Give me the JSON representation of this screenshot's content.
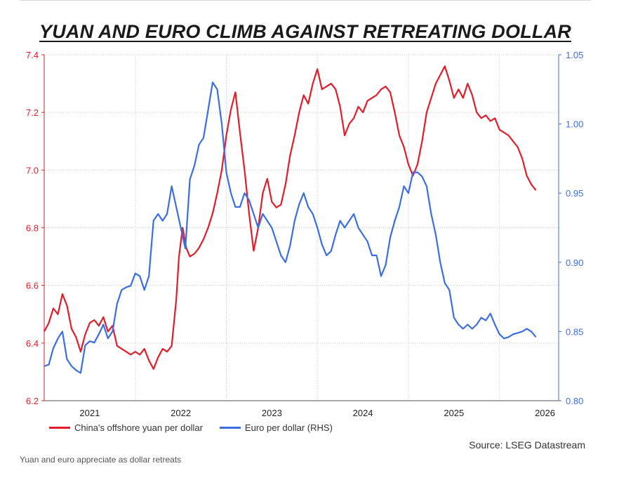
{
  "title": "YUAN AND EURO CLIMB AGAINST RETREATING DOLLAR",
  "source": "Source: LSEG Datastream",
  "caption": "Yuan and euro appreciate as dollar retreats",
  "colors": {
    "yuan": "#e11d2a",
    "euro": "#3b6ee0",
    "grid": "#c8c8c8"
  },
  "chart_data": {
    "type": "line",
    "title": "YUAN AND EURO CLIMB AGAINST RETREATING DOLLAR",
    "x_ticks": [
      "2021",
      "2022",
      "2023",
      "2024",
      "2025",
      "2026"
    ],
    "x_range": [
      2020.5,
      2026.15
    ],
    "y_left": {
      "range": [
        6.2,
        7.4
      ],
      "ticks": [
        "6.2",
        "6.4",
        "6.6",
        "6.8",
        "7.0",
        "7.2",
        "7.4"
      ],
      "color": "#e11d2a"
    },
    "y_right": {
      "range": [
        0.8,
        1.05
      ],
      "ticks": [
        "0.80",
        "0.85",
        "0.90",
        "0.95",
        "1.00",
        "1.05"
      ],
      "color": "#3b6ee0"
    },
    "grid": true,
    "legend_position": "bottom-left",
    "series": [
      {
        "name": "China's offshore yuan per dollar",
        "axis": "left",
        "x": [
          2020.5,
          2020.55,
          2020.6,
          2020.65,
          2020.7,
          2020.75,
          2020.8,
          2020.85,
          2020.9,
          2020.95,
          2021.0,
          2021.05,
          2021.1,
          2021.15,
          2021.2,
          2021.25,
          2021.3,
          2021.35,
          2021.4,
          2021.45,
          2021.5,
          2021.55,
          2021.6,
          2021.65,
          2021.7,
          2021.75,
          2021.8,
          2021.85,
          2021.9,
          2021.95,
          2021.98,
          2022.02,
          2022.06,
          2022.1,
          2022.15,
          2022.2,
          2022.25,
          2022.3,
          2022.35,
          2022.4,
          2022.45,
          2022.5,
          2022.55,
          2022.6,
          2022.65,
          2022.7,
          2022.75,
          2022.8,
          2022.85,
          2022.9,
          2022.95,
          2023.0,
          2023.05,
          2023.1,
          2023.15,
          2023.2,
          2023.25,
          2023.3,
          2023.35,
          2023.4,
          2023.45,
          2023.5,
          2023.55,
          2023.6,
          2023.65,
          2023.7,
          2023.75,
          2023.8,
          2023.85,
          2023.9,
          2023.95,
          2024.0,
          2024.05,
          2024.1,
          2024.15,
          2024.2,
          2024.25,
          2024.3,
          2024.35,
          2024.4,
          2024.45,
          2024.5,
          2024.55,
          2024.6,
          2024.65,
          2024.7,
          2024.75,
          2024.8,
          2024.85,
          2024.9,
          2024.95,
          2025.0,
          2025.05,
          2025.1,
          2025.15,
          2025.2,
          2025.25,
          2025.3,
          2025.35,
          2025.4,
          2025.45,
          2025.5,
          2025.55,
          2025.6,
          2025.65,
          2025.7,
          2025.75,
          2025.8,
          2025.85,
          2025.9
        ],
        "values": [
          6.44,
          6.47,
          6.52,
          6.5,
          6.57,
          6.53,
          6.45,
          6.42,
          6.37,
          6.43,
          6.47,
          6.48,
          6.46,
          6.49,
          6.44,
          6.46,
          6.39,
          6.38,
          6.37,
          6.36,
          6.37,
          6.36,
          6.38,
          6.34,
          6.31,
          6.35,
          6.38,
          6.37,
          6.39,
          6.55,
          6.7,
          6.8,
          6.73,
          6.7,
          6.71,
          6.73,
          6.76,
          6.8,
          6.85,
          6.92,
          7.0,
          7.12,
          7.21,
          7.27,
          7.13,
          7.0,
          6.85,
          6.72,
          6.8,
          6.92,
          6.97,
          6.89,
          6.87,
          6.88,
          6.95,
          7.05,
          7.12,
          7.2,
          7.26,
          7.23,
          7.3,
          7.35,
          7.28,
          7.29,
          7.3,
          7.28,
          7.22,
          7.12,
          7.16,
          7.18,
          7.22,
          7.2,
          7.24,
          7.25,
          7.26,
          7.28,
          7.29,
          7.27,
          7.2,
          7.12,
          7.08,
          7.02,
          6.98,
          7.02,
          7.1,
          7.2,
          7.25,
          7.3,
          7.33,
          7.36,
          7.31,
          7.25,
          7.28,
          7.25,
          7.3,
          7.26,
          7.2,
          7.18,
          7.19,
          7.17,
          7.18,
          7.14,
          7.13,
          7.12,
          7.1,
          7.08,
          7.04,
          6.98,
          6.95,
          6.93
        ],
        "color": "#e11d2a"
      },
      {
        "name": "Euro per dollar (RHS)",
        "axis": "right",
        "x": [
          2020.5,
          2020.55,
          2020.6,
          2020.65,
          2020.7,
          2020.75,
          2020.8,
          2020.85,
          2020.9,
          2020.95,
          2021.0,
          2021.05,
          2021.1,
          2021.15,
          2021.2,
          2021.25,
          2021.3,
          2021.35,
          2021.4,
          2021.45,
          2021.5,
          2021.55,
          2021.6,
          2021.65,
          2021.7,
          2021.75,
          2021.8,
          2021.85,
          2021.9,
          2021.95,
          2022.0,
          2022.05,
          2022.1,
          2022.15,
          2022.2,
          2022.25,
          2022.3,
          2022.35,
          2022.4,
          2022.45,
          2022.5,
          2022.55,
          2022.6,
          2022.65,
          2022.7,
          2022.75,
          2022.8,
          2022.85,
          2022.9,
          2022.95,
          2023.0,
          2023.05,
          2023.1,
          2023.15,
          2023.2,
          2023.25,
          2023.3,
          2023.35,
          2023.4,
          2023.45,
          2023.5,
          2023.55,
          2023.6,
          2023.65,
          2023.7,
          2023.75,
          2023.8,
          2023.85,
          2023.9,
          2023.95,
          2024.0,
          2024.05,
          2024.1,
          2024.15,
          2024.2,
          2024.25,
          2024.3,
          2024.35,
          2024.4,
          2024.45,
          2024.5,
          2024.55,
          2024.6,
          2024.65,
          2024.7,
          2024.75,
          2024.8,
          2024.85,
          2024.9,
          2024.95,
          2025.0,
          2025.05,
          2025.1,
          2025.15,
          2025.2,
          2025.25,
          2025.3,
          2025.35,
          2025.4,
          2025.45,
          2025.5,
          2025.55,
          2025.6,
          2025.65,
          2025.7,
          2025.75,
          2025.8,
          2025.85,
          2025.9
        ],
        "values": [
          0.825,
          0.826,
          0.838,
          0.845,
          0.85,
          0.83,
          0.825,
          0.822,
          0.82,
          0.84,
          0.843,
          0.842,
          0.848,
          0.855,
          0.845,
          0.85,
          0.87,
          0.88,
          0.882,
          0.883,
          0.892,
          0.89,
          0.88,
          0.89,
          0.93,
          0.935,
          0.93,
          0.935,
          0.955,
          0.94,
          0.925,
          0.91,
          0.96,
          0.97,
          0.985,
          0.99,
          1.01,
          1.03,
          1.025,
          1.0,
          0.965,
          0.95,
          0.94,
          0.94,
          0.95,
          0.945,
          0.935,
          0.925,
          0.935,
          0.93,
          0.925,
          0.915,
          0.905,
          0.9,
          0.912,
          0.93,
          0.942,
          0.95,
          0.94,
          0.935,
          0.925,
          0.913,
          0.905,
          0.908,
          0.92,
          0.93,
          0.925,
          0.93,
          0.935,
          0.925,
          0.92,
          0.915,
          0.905,
          0.905,
          0.89,
          0.898,
          0.918,
          0.93,
          0.94,
          0.955,
          0.95,
          0.965,
          0.965,
          0.962,
          0.955,
          0.935,
          0.92,
          0.9,
          0.885,
          0.88,
          0.86,
          0.855,
          0.852,
          0.855,
          0.852,
          0.855,
          0.86,
          0.858,
          0.863,
          0.855,
          0.848,
          0.845,
          0.846,
          0.848,
          0.849,
          0.85,
          0.852,
          0.85,
          0.846
        ],
        "color": "#3b6ee0"
      }
    ]
  },
  "legend": [
    {
      "label": "China's offshore yuan per dollar",
      "color": "#e11d2a"
    },
    {
      "label": "Euro per dollar (RHS)",
      "color": "#3b6ee0"
    }
  ]
}
